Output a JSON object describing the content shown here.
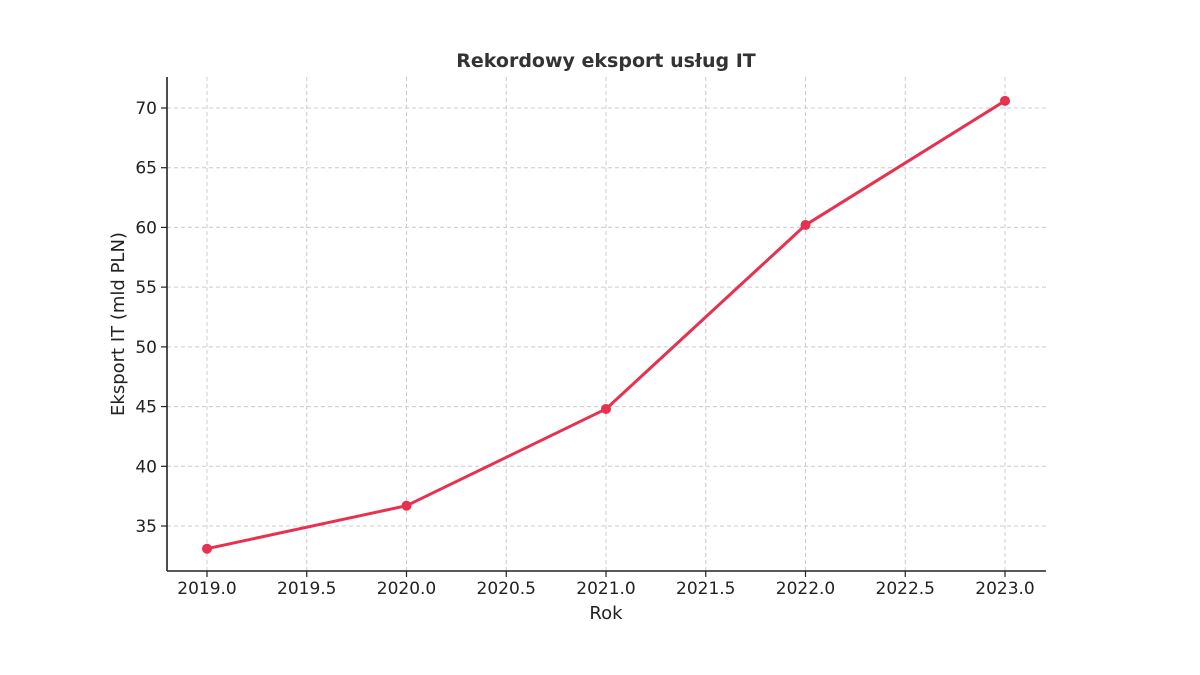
{
  "chart_data": {
    "type": "line",
    "title": "Rekordowy eksport usług IT",
    "xlabel": "Rok",
    "ylabel": "Eksport IT (mld PLN)",
    "x": [
      2019,
      2020,
      2021,
      2022,
      2023
    ],
    "series": [
      {
        "name": "Eksport IT",
        "values": [
          33.1,
          36.7,
          44.8,
          60.2,
          70.6
        ],
        "color": "#e8304f",
        "marker": "circle"
      }
    ],
    "xlim": [
      2018.8,
      2023.2
    ],
    "ylim": [
      31.3,
      72.6
    ],
    "xticks": [
      "2019.0",
      "2019.5",
      "2020.0",
      "2020.5",
      "2021.0",
      "2021.5",
      "2022.0",
      "2022.5",
      "2023.0"
    ],
    "yticks": [
      "35",
      "40",
      "45",
      "50",
      "55",
      "60",
      "65",
      "70"
    ],
    "grid": true,
    "grid_style": "dashed",
    "legend": "none"
  }
}
